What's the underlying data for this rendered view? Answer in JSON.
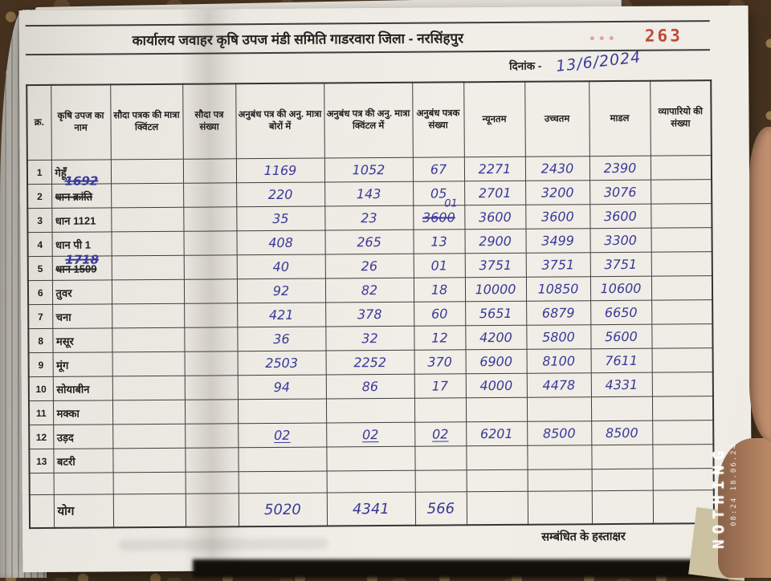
{
  "page": {
    "title": "कार्यालय जवाहर कृषि उपज मंडी समिति गाडरवारा जिला - नरसिंहपुर",
    "page_number": "263",
    "date_label": "दिनांक -",
    "date_value": "13/6/2024",
    "footer_label": "सम्बंधित के हस्ताक्षर"
  },
  "watermark": {
    "brand": "NOTHING",
    "date": "18.06.24",
    "time": "08:24"
  },
  "colors": {
    "ink_blue": "#39399a",
    "stamp_red": "#c03a2b",
    "paper": "#efece5",
    "grid_line": "#3d3d3d"
  },
  "table": {
    "headers": [
      "क्र.",
      "कृषि उपज का नाम",
      "सौदा पत्रक की मात्रा क्विंटल",
      "सौदा पत्र संख्या",
      "अनुबंध पत्र की अनु. मात्रा बोरों में",
      "अनुबंध पत्र की अनु. मात्रा क्विंटल में",
      "अनुबंध पत्रक संख्या",
      "न्यूनतम",
      "उच्चतम",
      "माडल",
      "व्यापारियो की संख्या"
    ],
    "rows": [
      {
        "no": "1",
        "name": "गेहूँ",
        "name_struck": false,
        "note": "",
        "note_pos": "",
        "sauda_qty": "",
        "sauda_no": "",
        "bags": "1169",
        "quintals": "1052",
        "contracts": "67",
        "contracts_struck": "",
        "min": "2271",
        "max": "2430",
        "modal": "2390",
        "traders": "",
        "underlined": false
      },
      {
        "no": "2",
        "name": "धान क्रांति",
        "name_struck": true,
        "note": "1692",
        "note_pos": "above",
        "sauda_qty": "",
        "sauda_no": "",
        "bags": "220",
        "quintals": "143",
        "contracts": "05",
        "contracts_struck": "",
        "min": "2701",
        "max": "3200",
        "modal": "3076",
        "traders": "",
        "underlined": false
      },
      {
        "no": "3",
        "name": "धान 1121",
        "name_struck": false,
        "note": "",
        "note_pos": "",
        "sauda_qty": "",
        "sauda_no": "",
        "bags": "35",
        "quintals": "23",
        "contracts": "01",
        "contracts_struck": "3600",
        "min": "3600",
        "max": "3600",
        "modal": "3600",
        "traders": "",
        "underlined": false
      },
      {
        "no": "4",
        "name": "धान पी 1",
        "name_struck": false,
        "note": "1718",
        "note_pos": "below",
        "sauda_qty": "",
        "sauda_no": "",
        "bags": "408",
        "quintals": "265",
        "contracts": "13",
        "contracts_struck": "",
        "min": "2900",
        "max": "3499",
        "modal": "3300",
        "traders": "",
        "underlined": false
      },
      {
        "no": "5",
        "name": "धान 1509",
        "name_struck": true,
        "note": "",
        "note_pos": "",
        "sauda_qty": "",
        "sauda_no": "",
        "bags": "40",
        "quintals": "26",
        "contracts": "01",
        "contracts_struck": "",
        "min": "3751",
        "max": "3751",
        "modal": "3751",
        "traders": "",
        "underlined": false
      },
      {
        "no": "6",
        "name": "तुवर",
        "name_struck": false,
        "note": "",
        "note_pos": "",
        "sauda_qty": "",
        "sauda_no": "",
        "bags": "92",
        "quintals": "82",
        "contracts": "18",
        "contracts_struck": "",
        "min": "10000",
        "max": "10850",
        "modal": "10600",
        "traders": "",
        "underlined": false
      },
      {
        "no": "7",
        "name": "चना",
        "name_struck": false,
        "note": "",
        "note_pos": "",
        "sauda_qty": "",
        "sauda_no": "",
        "bags": "421",
        "quintals": "378",
        "contracts": "60",
        "contracts_struck": "",
        "min": "5651",
        "max": "6879",
        "modal": "6650",
        "traders": "",
        "underlined": false
      },
      {
        "no": "8",
        "name": "मसूर",
        "name_struck": false,
        "note": "",
        "note_pos": "",
        "sauda_qty": "",
        "sauda_no": "",
        "bags": "36",
        "quintals": "32",
        "contracts": "12",
        "contracts_struck": "",
        "min": "4200",
        "max": "5800",
        "modal": "5600",
        "traders": "",
        "underlined": false
      },
      {
        "no": "9",
        "name": "मूंग",
        "name_struck": false,
        "note": "",
        "note_pos": "",
        "sauda_qty": "",
        "sauda_no": "",
        "bags": "2503",
        "quintals": "2252",
        "contracts": "370",
        "contracts_struck": "",
        "min": "6900",
        "max": "8100",
        "modal": "7611",
        "traders": "",
        "underlined": false
      },
      {
        "no": "10",
        "name": "सोयाबीन",
        "name_struck": false,
        "note": "",
        "note_pos": "",
        "sauda_qty": "",
        "sauda_no": "",
        "bags": "94",
        "quintals": "86",
        "contracts": "17",
        "contracts_struck": "",
        "min": "4000",
        "max": "4478",
        "modal": "4331",
        "traders": "",
        "underlined": false
      },
      {
        "no": "11",
        "name": "मक्का",
        "name_struck": false,
        "note": "",
        "note_pos": "",
        "sauda_qty": "",
        "sauda_no": "",
        "bags": "",
        "quintals": "",
        "contracts": "",
        "contracts_struck": "",
        "min": "",
        "max": "",
        "modal": "",
        "traders": "",
        "underlined": false
      },
      {
        "no": "12",
        "name": "उड़द",
        "name_struck": false,
        "note": "",
        "note_pos": "",
        "sauda_qty": "",
        "sauda_no": "",
        "bags": "02",
        "quintals": "02",
        "contracts": "02",
        "contracts_struck": "",
        "min": "6201",
        "max": "8500",
        "modal": "8500",
        "traders": "",
        "underlined": true
      },
      {
        "no": "13",
        "name": "बटरी",
        "name_struck": false,
        "note": "",
        "note_pos": "",
        "sauda_qty": "",
        "sauda_no": "",
        "bags": "",
        "quintals": "",
        "contracts": "",
        "contracts_struck": "",
        "min": "",
        "max": "",
        "modal": "",
        "traders": "",
        "underlined": false
      },
      {
        "no": "",
        "name": "",
        "name_struck": false,
        "note": "",
        "note_pos": "",
        "sauda_qty": "",
        "sauda_no": "",
        "bags": "",
        "quintals": "",
        "contracts": "",
        "contracts_struck": "",
        "min": "",
        "max": "",
        "modal": "",
        "traders": "",
        "underlined": false
      }
    ],
    "total": {
      "label": "योग",
      "bags": "5020",
      "quintals": "4341",
      "contracts": "566"
    }
  }
}
